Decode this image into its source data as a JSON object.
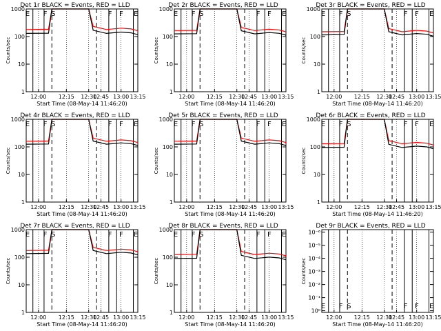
{
  "figure": {
    "xlabel": "Start Time (08-May-14 11:46:20)",
    "ylabel": "Counts/sec"
  },
  "chart_data": [
    {
      "type": "line",
      "title": "Det 1r BLACK = Events, RED = LLD",
      "xlabel": "Start Time (08-May-14 11:46:20)",
      "ylabel": "Counts/sec",
      "xticks": [
        "12:00",
        "12:15",
        "12:30",
        "12:45",
        "13:00",
        "13:15"
      ],
      "yticks": [
        "1",
        "10",
        "100",
        "1000"
      ],
      "ylim": [
        1,
        1000
      ],
      "log_y": true,
      "markers": [
        "E",
        "F",
        "S",
        "F",
        "F",
        "E"
      ],
      "series": [
        {
          "name": "Events",
          "color": "#000000",
          "approx_level": "~120-160 counts/sec, saturated during S"
        },
        {
          "name": "LLD",
          "color": "#ff0000",
          "approx_level": "~170-200 counts/sec, saturated during S"
        }
      ]
    },
    {
      "type": "line",
      "title": "Det 2r BLACK = Events, RED = LLD",
      "xlabel": "Start Time (08-May-14 11:46:20)",
      "ylabel": "Counts/sec",
      "xticks": [
        "12:00",
        "12:15",
        "12:30",
        "12:45",
        "13:00",
        "13:15"
      ],
      "yticks": [
        "1",
        "10",
        "100",
        "1000"
      ],
      "ylim": [
        1,
        1000
      ],
      "log_y": true,
      "markers": [
        "E",
        "F",
        "S",
        "F",
        "F",
        "E"
      ],
      "series": [
        {
          "name": "Events",
          "color": "#000000",
          "approx_level": "~110-140 counts/sec"
        },
        {
          "name": "LLD",
          "color": "#ff0000",
          "approx_level": "~150-180 counts/sec"
        }
      ]
    },
    {
      "type": "line",
      "title": "Det 3r BLACK = Events, RED = LLD",
      "xlabel": "Start Time (08-May-14 11:46:20)",
      "ylabel": "Counts/sec",
      "xticks": [
        "12:00",
        "12:15",
        "12:30",
        "12:45",
        "13:00",
        "13:15"
      ],
      "yticks": [
        "1",
        "10",
        "100",
        "1000"
      ],
      "ylim": [
        1,
        1000
      ],
      "log_y": true,
      "markers": [
        "E",
        "F",
        "S",
        "F",
        "F",
        "E"
      ],
      "series": [
        {
          "name": "Events",
          "color": "#000000",
          "approx_level": "~100-130 counts/sec"
        },
        {
          "name": "LLD",
          "color": "#ff0000",
          "approx_level": "~140-170 counts/sec"
        }
      ]
    },
    {
      "type": "line",
      "title": "Det 4r BLACK = Events, RED = LLD",
      "xlabel": "Start Time (08-May-14 11:46:20)",
      "ylabel": "Counts/sec",
      "xticks": [
        "12:00",
        "12:15",
        "12:30",
        "12:45",
        "13:00",
        "13:15"
      ],
      "yticks": [
        "1",
        "10",
        "100",
        "1000"
      ],
      "ylim": [
        1,
        1000
      ],
      "log_y": true,
      "markers": [
        "E",
        "F",
        "S",
        "F",
        "F",
        "E"
      ],
      "series": [
        {
          "name": "Events",
          "color": "#000000",
          "approx_level": "~110-140 counts/sec"
        },
        {
          "name": "LLD",
          "color": "#ff0000",
          "approx_level": "~150-180 counts/sec"
        }
      ]
    },
    {
      "type": "line",
      "title": "Det 5r BLACK = Events, RED = LLD",
      "xlabel": "Start Time (08-May-14 11:46:20)",
      "ylabel": "Counts/sec",
      "xticks": [
        "12:00",
        "12:15",
        "12:30",
        "12:45",
        "13:00",
        "13:15"
      ],
      "yticks": [
        "1",
        "10",
        "100",
        "1000"
      ],
      "ylim": [
        1,
        1000
      ],
      "log_y": true,
      "markers": [
        "E",
        "F",
        "S",
        "F",
        "F",
        "E"
      ],
      "series": [
        {
          "name": "Events",
          "color": "#000000",
          "approx_level": "~110-140 counts/sec"
        },
        {
          "name": "LLD",
          "color": "#ff0000",
          "approx_level": "~150-180 counts/sec"
        }
      ]
    },
    {
      "type": "line",
      "title": "Det 6r BLACK = Events, RED = LLD",
      "xlabel": "Start Time (08-May-14 11:46:20)",
      "ylabel": "Counts/sec",
      "xticks": [
        "12:00",
        "12:15",
        "12:30",
        "12:45",
        "13:00",
        "13:15"
      ],
      "yticks": [
        "1",
        "10",
        "100",
        "1000"
      ],
      "ylim": [
        1,
        1000
      ],
      "log_y": true,
      "markers": [
        "E",
        "F",
        "S",
        "F",
        "F",
        "E"
      ],
      "series": [
        {
          "name": "Events",
          "color": "#000000",
          "approx_level": "~80-110 counts/sec"
        },
        {
          "name": "LLD",
          "color": "#ff0000",
          "approx_level": "~110-150 counts/sec"
        }
      ]
    },
    {
      "type": "line",
      "title": "Det 7r BLACK = Events, RED = LLD",
      "xlabel": "Start Time (08-May-14 11:46:20)",
      "ylabel": "Counts/sec",
      "xticks": [
        "12:00",
        "12:15",
        "12:30",
        "12:45",
        "13:00",
        "13:15"
      ],
      "yticks": [
        "1",
        "10",
        "100",
        "1000"
      ],
      "ylim": [
        1,
        1000
      ],
      "log_y": true,
      "markers": [
        "E",
        "F",
        "S",
        "F",
        "F",
        "E"
      ],
      "series": [
        {
          "name": "Events",
          "color": "#000000",
          "approx_level": "~120-150 counts/sec"
        },
        {
          "name": "LLD",
          "color": "#ff0000",
          "approx_level": "~160-200 counts/sec"
        }
      ]
    },
    {
      "type": "line",
      "title": "Det 8r BLACK = Events, RED = LLD",
      "xlabel": "Start Time (08-May-14 11:46:20)",
      "ylabel": "Counts/sec",
      "xticks": [
        "12:00",
        "12:15",
        "12:30",
        "12:45",
        "13:00",
        "13:15"
      ],
      "yticks": [
        "1",
        "10",
        "100",
        "1000"
      ],
      "ylim": [
        1,
        1000
      ],
      "log_y": true,
      "markers": [
        "E",
        "F",
        "S",
        "F",
        "F",
        "E"
      ],
      "series": [
        {
          "name": "Events",
          "color": "#000000",
          "approx_level": "~80-100 counts/sec"
        },
        {
          "name": "LLD",
          "color": "#ff0000",
          "approx_level": "~110-140 counts/sec"
        }
      ]
    },
    {
      "type": "line",
      "title": "Det 9r BLACK = Events, RED = LLD",
      "xlabel": "Start Time (08-May-14 11:46:20)",
      "ylabel": "Counts/sec",
      "xticks": [
        "12:00",
        "12:15",
        "12:30",
        "12:45",
        "13:00",
        "13:15"
      ],
      "yticks": [
        "10⁰",
        "10⁻¹",
        "10⁻²",
        "10⁻³",
        "10⁻⁴",
        "10⁻⁵",
        "10⁻⁶"
      ],
      "ylim": [
        1e-06,
        1
      ],
      "log_y": true,
      "markers": [
        "E",
        "F",
        "S",
        "F",
        "F",
        "E"
      ],
      "series": []
    }
  ]
}
